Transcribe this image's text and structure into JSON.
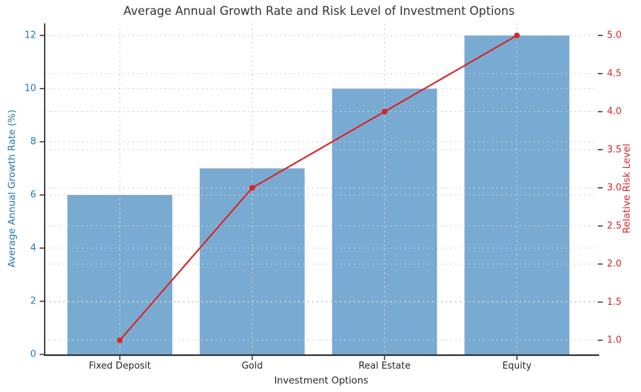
{
  "chart_data": {
    "type": "bar",
    "subtype": "combo-bar-line-dual-axis",
    "title": "Average Annual Growth Rate and Risk Level of Investment Options",
    "xlabel": "Investment Options",
    "categories": [
      "Fixed Deposit",
      "Gold",
      "Real Estate",
      "Equity"
    ],
    "series": [
      {
        "name": "Average Annual Growth Rate (%)",
        "type": "bar",
        "axis": "left",
        "values": [
          6,
          7,
          10,
          12
        ],
        "color": "#79abd2"
      },
      {
        "name": "Relative Risk Level",
        "type": "line",
        "axis": "right",
        "values": [
          1.0,
          3.0,
          4.0,
          5.0
        ],
        "color": "#d62728",
        "marker": "circle"
      }
    ],
    "left_axis": {
      "label": "Average Annual Growth Rate (%)",
      "color": "#1f77b4",
      "tick_labels": [
        "0",
        "2",
        "4",
        "6",
        "8",
        "10",
        "12"
      ],
      "tick_values": [
        0,
        2,
        4,
        6,
        8,
        10,
        12
      ],
      "range": [
        0,
        12.45
      ]
    },
    "right_axis": {
      "label": "Relative Risk Level",
      "color": "#d62728",
      "tick_labels": [
        "1.0",
        "1.5",
        "2.0",
        "2.5",
        "3.0",
        "3.5",
        "4.0",
        "4.5",
        "5.0"
      ],
      "tick_values": [
        1.0,
        1.5,
        2.0,
        2.5,
        3.0,
        3.5,
        4.0,
        4.5,
        5.0
      ],
      "range": [
        0.81,
        5.16
      ]
    },
    "grid": {
      "style": "dashed",
      "color": "#cdcdcd",
      "horizontal": true,
      "vertical": true,
      "drawn_above_bars": true
    },
    "legend": {
      "visible": false
    },
    "spine_color": "#2f2f2f",
    "background": "#ffffff"
  }
}
